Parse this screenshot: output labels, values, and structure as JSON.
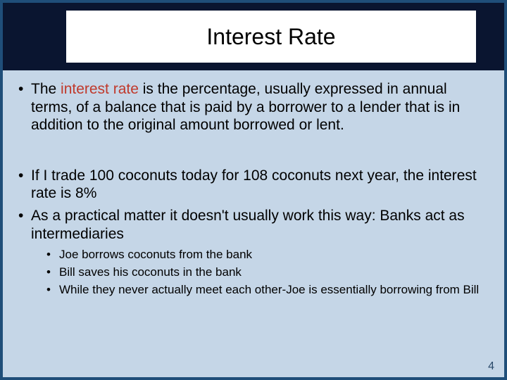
{
  "title": "Interest Rate",
  "bullets": {
    "b1_pre": "The ",
    "b1_term": "interest rate",
    "b1_post": " is the percentage, usually expressed in annual terms, of a balance that is paid by a borrower to a lender that is in addition to the original amount borrowed or lent.",
    "b2": "If I trade 100 coconuts today for 108 coconuts next year, the interest rate is 8%",
    "b3": "As a practical matter it doesn't usually work this way: Banks act as intermediaries",
    "sub": {
      "s1": "Joe borrows coconuts from the bank",
      "s2": "Bill  saves his coconuts in the bank",
      "s3": "While they never actually meet each other-Joe is essentially borrowing from Bill"
    }
  },
  "page_number": "4",
  "colors": {
    "slide_border": "#1f4e79",
    "slide_bg": "#c5d6e7",
    "titlebar_bg": "#0a1530",
    "titlebox_bg": "#ffffff",
    "text": "#000000",
    "term": "#c0392b",
    "pagenum": "#2a4a6a"
  },
  "fonts": {
    "title_pt": 32,
    "body_pt": 21,
    "sub_pt": 17,
    "pagenum_pt": 16
  }
}
